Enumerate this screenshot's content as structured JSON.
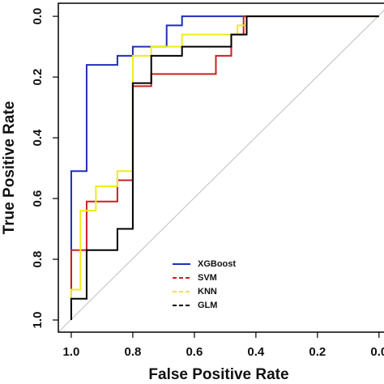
{
  "chart_data": {
    "type": "line",
    "xlabel": "False Positive  Rate",
    "ylabel": "True Positive Rate",
    "xlim": [
      1.042,
      -0.04
    ],
    "ylim": [
      -0.043,
      1.04
    ],
    "xticks": [
      {
        "value": 1.0,
        "label": "1.0"
      },
      0.8,
      0.6,
      0.4,
      0.2,
      {
        "value": 0.0,
        "label": "0.0"
      }
    ],
    "yticks": [
      {
        "value": 0.0,
        "label": "0.0"
      },
      0.2,
      0.4,
      0.6,
      0.8,
      {
        "value": 1.0,
        "label": "1.0"
      }
    ],
    "diagonal_color": "#c8c8c8",
    "series": [
      {
        "name": "XGBoost",
        "color": "#1f2fb8",
        "x": [
          1.0,
          1.0,
          0.95,
          0.95,
          0.85,
          0.85,
          0.8,
          0.8,
          0.69,
          0.69,
          0.64,
          0.64,
          0.43
        ],
        "values": [
          1.0,
          0.51,
          0.51,
          0.16,
          0.16,
          0.13,
          0.13,
          0.1,
          0.1,
          0.03,
          0.03,
          0.0,
          0.0
        ]
      },
      {
        "name": "SVM",
        "color": "#cc2020",
        "x": [
          1.0,
          1.0,
          0.95,
          0.95,
          0.9,
          0.9,
          0.85,
          0.85,
          0.8,
          0.8,
          0.74,
          0.74,
          0.53,
          0.53,
          0.48,
          0.48,
          0.44,
          0.44,
          0.0
        ],
        "values": [
          0.96,
          0.77,
          0.77,
          0.61,
          0.61,
          0.61,
          0.61,
          0.54,
          0.54,
          0.23,
          0.23,
          0.19,
          0.19,
          0.13,
          0.13,
          0.06,
          0.06,
          0.0,
          0.0
        ]
      },
      {
        "name": "KNN",
        "color": "#f2ea1a",
        "x": [
          1.0,
          1.0,
          0.97,
          0.97,
          0.92,
          0.92,
          0.85,
          0.85,
          0.8,
          0.8,
          0.74,
          0.74,
          0.64,
          0.64,
          0.46,
          0.46,
          0.43,
          0.43,
          0.0
        ],
        "values": [
          0.94,
          0.9,
          0.9,
          0.64,
          0.64,
          0.56,
          0.56,
          0.51,
          0.51,
          0.13,
          0.13,
          0.1,
          0.1,
          0.06,
          0.06,
          0.03,
          0.03,
          0.0,
          0.0
        ]
      },
      {
        "name": "GLM",
        "color": "#000000",
        "x": [
          1.0,
          1.0,
          0.95,
          0.95,
          0.85,
          0.85,
          0.8,
          0.8,
          0.74,
          0.74,
          0.64,
          0.64,
          0.48,
          0.48,
          0.43,
          0.43,
          0.0
        ],
        "values": [
          1.0,
          0.93,
          0.93,
          0.77,
          0.77,
          0.7,
          0.7,
          0.22,
          0.22,
          0.13,
          0.13,
          0.1,
          0.1,
          0.06,
          0.06,
          0.0,
          0.0
        ]
      }
    ]
  }
}
